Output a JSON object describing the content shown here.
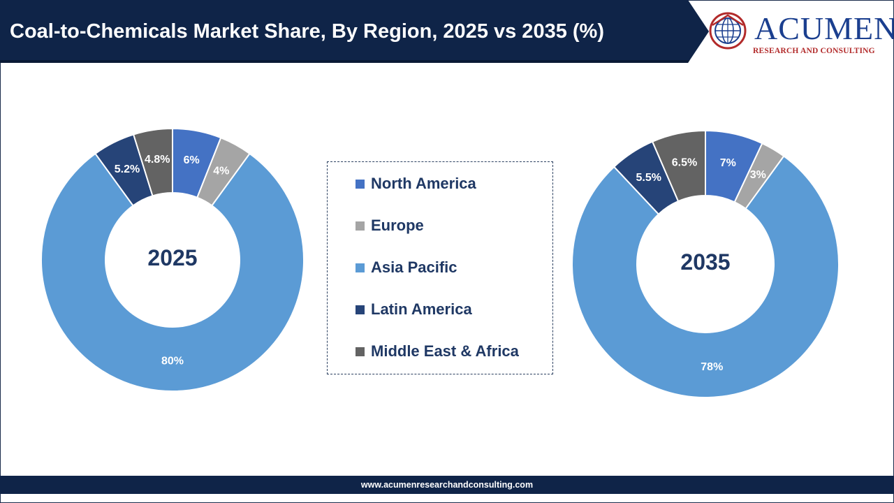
{
  "header": {
    "title": "Coal-to-Chemicals Market Share, By Region, 2025 vs 2035 (%)"
  },
  "logo": {
    "name": "ACUMEN",
    "tagline": "RESEARCH AND CONSULTING",
    "icon": "globe-icon"
  },
  "footer": {
    "url": "www.acumenresearchandconsulting.com"
  },
  "colors": {
    "north_america": "#4472c4",
    "europe": "#a5a5a5",
    "asia_pacific": "#5b9bd5",
    "latin_america": "#264478",
    "middle_east_africa": "#636363",
    "header_bg": "#0f2448",
    "center_label": "#1f3864"
  },
  "legend": [
    {
      "label": "North America",
      "color": "#4472c4"
    },
    {
      "label": "Europe",
      "color": "#a5a5a5"
    },
    {
      "label": "Asia Pacific",
      "color": "#5b9bd5"
    },
    {
      "label": "Latin America",
      "color": "#264478"
    },
    {
      "label": "Middle East & Africa",
      "color": "#636363"
    }
  ],
  "chart_data": [
    {
      "type": "pie",
      "variant": "donut",
      "title": "",
      "center_label": "2025",
      "categories": [
        "North America",
        "Europe",
        "Asia Pacific",
        "Latin America",
        "Middle East & Africa"
      ],
      "values": [
        6,
        4,
        80,
        5.2,
        4.8
      ],
      "labels": [
        "6%",
        "4%",
        "80%",
        "5.2%",
        "4.8%"
      ],
      "colors": [
        "#4472c4",
        "#a5a5a5",
        "#5b9bd5",
        "#264478",
        "#636363"
      ]
    },
    {
      "type": "pie",
      "variant": "donut",
      "title": "",
      "center_label": "2035",
      "categories": [
        "North America",
        "Europe",
        "Asia Pacific",
        "Latin America",
        "Middle East & Africa"
      ],
      "values": [
        7,
        3,
        78,
        5.5,
        6.5
      ],
      "labels": [
        "7%",
        "3%",
        "78%",
        "5.5%",
        "6.5%"
      ],
      "colors": [
        "#4472c4",
        "#a5a5a5",
        "#5b9bd5",
        "#264478",
        "#636363"
      ]
    }
  ]
}
